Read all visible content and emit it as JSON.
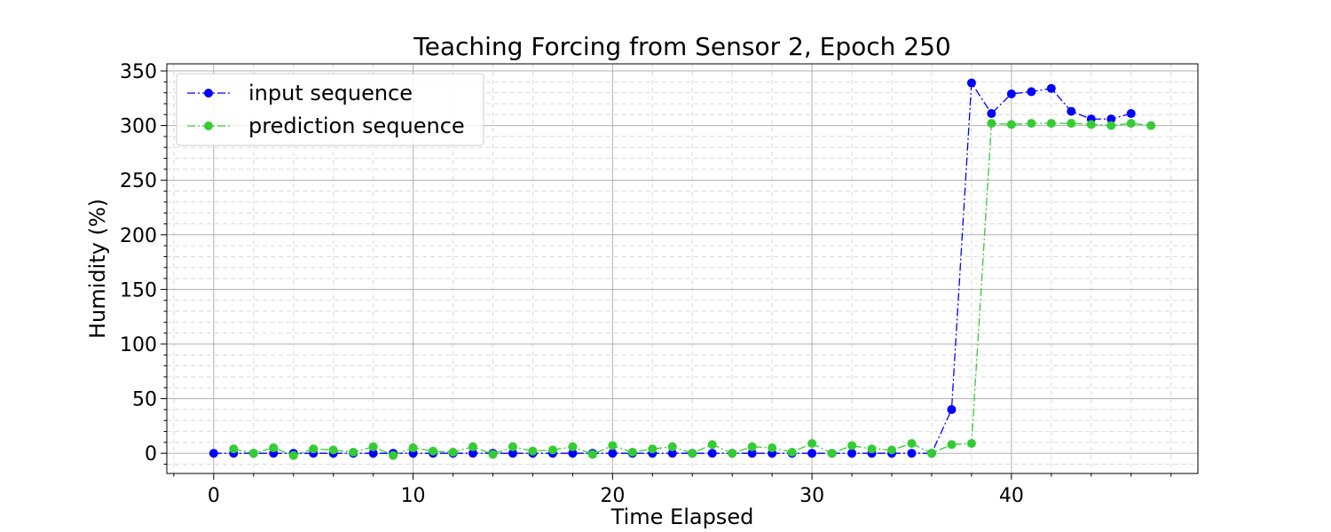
{
  "chart_data": {
    "type": "line",
    "title": "Teaching Forcing from Sensor 2, Epoch 250",
    "xlabel": "Time Elapsed",
    "ylabel": "Humidity (%)",
    "xlim": [
      -2.35,
      49.35
    ],
    "ylim": [
      -18.5,
      356.5
    ],
    "x_ticks": [
      0,
      10,
      20,
      30,
      40
    ],
    "y_ticks": [
      0,
      50,
      100,
      150,
      200,
      250,
      300,
      350
    ],
    "grid": true,
    "legend_position": "upper-left",
    "series": [
      {
        "name": "input sequence",
        "color": "#0000ff",
        "line_style": "dashdot",
        "marker": "circle",
        "x": [
          0,
          1,
          2,
          3,
          4,
          5,
          6,
          7,
          8,
          9,
          10,
          11,
          12,
          13,
          14,
          15,
          16,
          17,
          18,
          19,
          20,
          21,
          22,
          23,
          24,
          25,
          26,
          27,
          28,
          29,
          30,
          31,
          32,
          33,
          34,
          35,
          36,
          37,
          38,
          39,
          40,
          41,
          42,
          43,
          44,
          45,
          46
        ],
        "values": [
          0,
          0,
          0,
          0,
          0,
          0,
          0,
          0,
          0,
          0,
          0,
          0,
          0,
          0,
          0,
          0,
          0,
          0,
          0,
          0,
          0,
          0,
          0,
          0,
          0,
          0,
          0,
          0,
          0,
          0,
          0,
          0,
          0,
          0,
          0,
          0,
          0,
          40,
          339,
          311,
          329,
          331,
          334,
          313,
          306,
          306,
          311
        ]
      },
      {
        "name": "prediction sequence",
        "color": "#33cc33",
        "line_style": "dashdot",
        "marker": "circle",
        "x": [
          1,
          2,
          3,
          4,
          5,
          6,
          7,
          8,
          9,
          10,
          11,
          12,
          13,
          14,
          15,
          16,
          17,
          18,
          19,
          20,
          21,
          22,
          23,
          24,
          25,
          26,
          27,
          28,
          29,
          30,
          31,
          32,
          33,
          34,
          35,
          36,
          37,
          38,
          39,
          40,
          41,
          42,
          43,
          44,
          45,
          46,
          47
        ],
        "values": [
          4,
          0,
          5,
          -2,
          4,
          3,
          1,
          6,
          -2,
          5,
          2,
          1,
          6,
          -1,
          6,
          2,
          3,
          6,
          -1,
          7,
          1,
          4,
          6,
          0,
          8,
          0,
          6,
          5,
          1,
          9,
          0,
          7,
          4,
          3,
          9,
          0,
          8,
          9,
          302,
          301,
          302,
          302,
          302,
          301,
          300,
          302,
          300
        ]
      }
    ]
  }
}
